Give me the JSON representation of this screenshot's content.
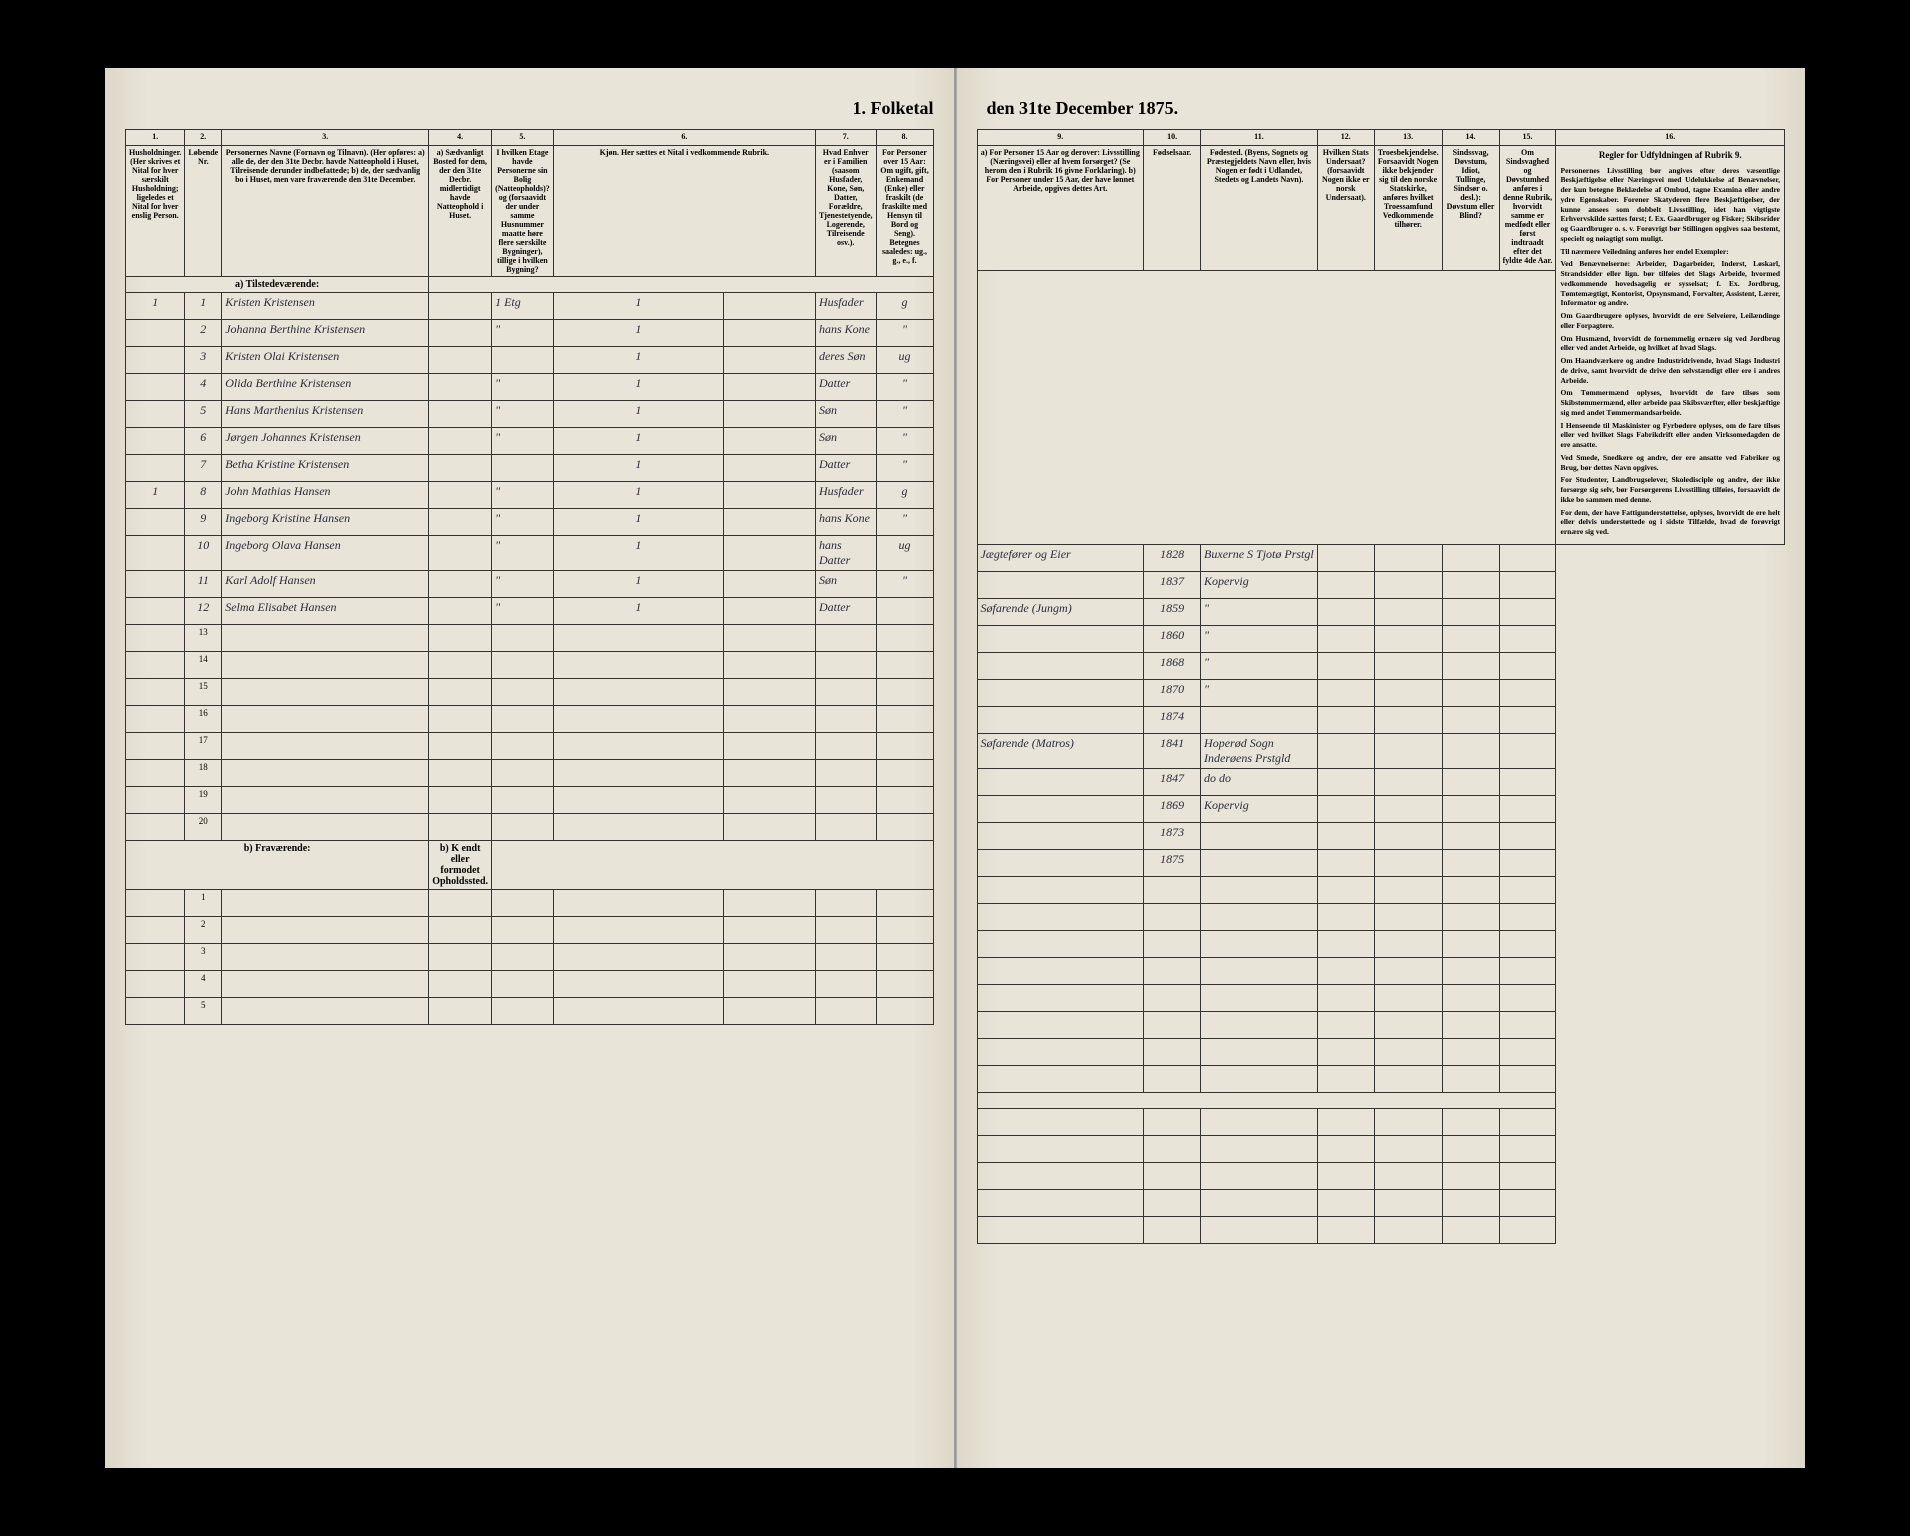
{
  "title_left": "1. Folketal",
  "title_right": "den 31te December 1875.",
  "columns": {
    "c1": "1.",
    "c2": "2.",
    "c3": "3.",
    "c4": "4.",
    "c5": "5.",
    "c6": "6.",
    "c7": "7.",
    "c8": "8.",
    "c9": "9.",
    "c10": "10.",
    "c11": "11.",
    "c12": "12.",
    "c13": "13.",
    "c14": "14.",
    "c15": "15.",
    "c16": "16."
  },
  "headers": {
    "h1": "Husholdninger. (Her skrives et Nital for hver særskilt Husholdning; ligeledes et Nital for hver enslig Person.",
    "h2": "Løbende Nr.",
    "h3": "Personernes Navne (Fornavn og Tilnavn). (Her opføres: a) alle de, der den 31te Decbr. havde Natteophold i Huset, Tilreisende derunder indbefattede; b) de, der sædvanlig bo i Huset, men vare fraværende den 31te December.",
    "h4": "a) Sædvanligt Bosted for dem, der den 31te Decbr. midlertidigt havde Natteophold i Huset.",
    "h5": "I hvilken Etage havde Personerne sin Bolig (Natteopholds)? og (forsaavidt der under samme Husnummer maatte høre flere særskilte Bygninger), tillige i hvilken Bygning?",
    "h6": "Kjøn. Her sættes et Nital i vedkommende Rubrik.",
    "h7": "Hvad Enhver er i Familien (saasom Husfader, Kone, Søn, Datter, Forældre, Tjenestetyende, Logerende, Tilreisende osv.).",
    "h8": "For Personer over 15 Aar: Om ugift, gift, Enkemand (Enke) eller fraskilt (de fraskilte med Hensyn til Bord og Seng). Betegnes saaledes: ug., g., e., f.",
    "h9": "a) For Personer 15 Aar og derover: Livsstilling (Næringsvei) eller af hvem forsørget? (Se herom den i Rubrik 16 givne Forklaring). b) For Personer under 15 Aar, der have lønnet Arbeide, opgives dettes Art.",
    "h10": "Fødselsaar.",
    "h11": "Fødested. (Byens, Sognets og Præstegjeldets Navn eller, hvis Nogen er født i Udlandet, Stedets og Landets Navn).",
    "h12": "Hvilken Stats Undersaat? (forsaavidt Nogen ikke er norsk Undersaat).",
    "h13": "Troesbekjendelse. Forsaavidt Nogen ikke bekjender sig til den norske Statskirke, anføres hvilket Troessamfund Vedkommende tilhører.",
    "h14": "Sindssvag, Døvstum, Idiot, Tullinge, Sindsør o. desl.): Døvstum eller Blind?",
    "h15": "Om Sindsvaghed og Døvstumhed anføres i denne Rubrik, hvorvidt samme er medfødt eller først indtraadt efter det fyldte 4de Aar.",
    "h16": "Regler for Udfyldningen af Rubrik 9."
  },
  "section_a": "a) Tilstedeværende:",
  "section_b": "b) Fraværende:",
  "section_b_note": "b) K endt eller formodet Opholdssted.",
  "rows": [
    {
      "hh": "1",
      "n": "1",
      "name": "Kristen Kristensen",
      "bosted": "",
      "etage": "1 Etg",
      "k": "1",
      "fam": "Husfader",
      "civ": "g",
      "liv": "Jægtefører og Eier",
      "aar": "1828",
      "sted": "Buxerne S Tjotø Prstgl"
    },
    {
      "hh": "",
      "n": "2",
      "name": "Johanna Berthine Kristensen",
      "bosted": "",
      "etage": "\"",
      "k": "1",
      "fam": "hans Kone",
      "civ": "\"",
      "liv": "",
      "aar": "1837",
      "sted": "Kopervig"
    },
    {
      "hh": "",
      "n": "3",
      "name": "Kristen Olai Kristensen",
      "bosted": "",
      "etage": "",
      "k": "1",
      "fam": "deres Søn",
      "civ": "ug",
      "liv": "Søfarende (Jungm)",
      "aar": "1859",
      "sted": "\""
    },
    {
      "hh": "",
      "n": "4",
      "name": "Olida Berthine Kristensen",
      "bosted": "",
      "etage": "\"",
      "k": "1",
      "fam": "Datter",
      "civ": "\"",
      "liv": "",
      "aar": "1860",
      "sted": "\""
    },
    {
      "hh": "",
      "n": "5",
      "name": "Hans Marthenius Kristensen",
      "bosted": "",
      "etage": "\"",
      "k": "1",
      "fam": "Søn",
      "civ": "\"",
      "liv": "",
      "aar": "1868",
      "sted": "\""
    },
    {
      "hh": "",
      "n": "6",
      "name": "Jørgen Johannes Kristensen",
      "bosted": "",
      "etage": "\"",
      "k": "1",
      "fam": "Søn",
      "civ": "\"",
      "liv": "",
      "aar": "1870",
      "sted": "\""
    },
    {
      "hh": "",
      "n": "7",
      "name": "Betha Kristine Kristensen",
      "bosted": "",
      "etage": "",
      "k": "1",
      "fam": "Datter",
      "civ": "\"",
      "liv": "",
      "aar": "1874",
      "sted": ""
    },
    {
      "hh": "1",
      "n": "8",
      "name": "John Mathias Hansen",
      "bosted": "",
      "etage": "\"",
      "k": "1",
      "fam": "Husfader",
      "civ": "g",
      "liv": "Søfarende (Matros)",
      "aar": "1841",
      "sted": "Hoperød Sogn Inderøens Prstgld"
    },
    {
      "hh": "",
      "n": "9",
      "name": "Ingeborg Kristine Hansen",
      "bosted": "",
      "etage": "\"",
      "k": "1",
      "fam": "hans Kone",
      "civ": "\"",
      "liv": "",
      "aar": "1847",
      "sted": "do do"
    },
    {
      "hh": "",
      "n": "10",
      "name": "Ingeborg Olava Hansen",
      "bosted": "",
      "etage": "\"",
      "k": "1",
      "fam": "hans Datter",
      "civ": "ug",
      "liv": "",
      "aar": "1869",
      "sted": "Kopervig"
    },
    {
      "hh": "",
      "n": "11",
      "name": "Karl Adolf Hansen",
      "bosted": "",
      "etage": "\"",
      "k": "1",
      "fam": "Søn",
      "civ": "\"",
      "liv": "",
      "aar": "1873",
      "sted": ""
    },
    {
      "hh": "",
      "n": "12",
      "name": "Selma Elisabet Hansen",
      "bosted": "",
      "etage": "\"",
      "k": "1",
      "fam": "Datter",
      "civ": "",
      "liv": "",
      "aar": "1875",
      "sted": ""
    }
  ],
  "empty_rows_a": [
    13,
    14,
    15,
    16,
    17,
    18,
    19,
    20
  ],
  "empty_rows_b": [
    1,
    2,
    3,
    4,
    5
  ],
  "rules": [
    "Personernes Livsstilling bør angives efter deres væsentlige Beskjæftigelse eller Næringsvei med Udelukkelse af Benævnelser, der kun betegne Beklædelse af Ombud, tagne Examina eller andre ydre Egenskaber. Forener Skatyderen flere Beskjæftigelser, der kunne ansees som dobbelt Livsstilling, idet han vigtigste Erhvervskilde sættes først; f. Ex. Gaardbruger og Fisker; Skibsrider og Gaardbruger o. s. v. Forøvrigt bør Stillingen opgives saa bestemt, specielt og nøiagtigt som muligt.",
    "Til nærmere Veiledning anføres her endel Exempler:",
    "Ved Benævnelserne: Arbeider, Dagarbeider, Inderst, Løskarl, Strandsidder eller lign. bør tilføies det Slags Arbeide, hvormed vedkommende hovedsagelig er sysselsat; f. Ex. Jordbrug, Tømtemægtigt, Kontorist, Opsynsmand, Forvalter, Assistent, Lærer, Informator og andre.",
    "Om Gaardbrugere oplyses, hvorvidt de ere Selveiere, Leilændinge eller Forpagtere.",
    "Om Husmænd, hvorvidt de fornemmelig ernære sig ved Jordbrug eller ved andet Arbeide, og hvilket af hvad Slags.",
    "Om Haandværkere og andre Industridrivende, hvad Slags Industri de drive, samt hvorvidt de drive den selvstændigt eller ere i andres Arbeide.",
    "Om Tømmermænd oplyses, hvorvidt de fare tilsøs som Skibstømmermænd, eller arbeide paa Skibsværfter, eller beskjæftige sig med andet Tømmermandsarbeide.",
    "I Henseende til Maskinister og Fyrbødere oplyses, om de fare tilsøs eller ved hvilket Slags Fabrikdrift eller anden Virksomedagden de ere ansatte.",
    "Ved Smede, Snedkere og andre, der ere ansatte ved Fabriker og Brug, bør dettes Navn opgives.",
    "For Studenter, Landbrugselever, Skoledisciple og andre, der ikke forsørge sig selv, bør Forsørgerens Livsstilling tilføies, forsaavidt de ikke bo sammen med denne.",
    "For dem, der have Fattigunderstøttelse, oplyses, hvorvidt de ere helt eller delvis understøttede og i sidste Tilfælde, hvad de forøvrigt ernære sig ved."
  ]
}
